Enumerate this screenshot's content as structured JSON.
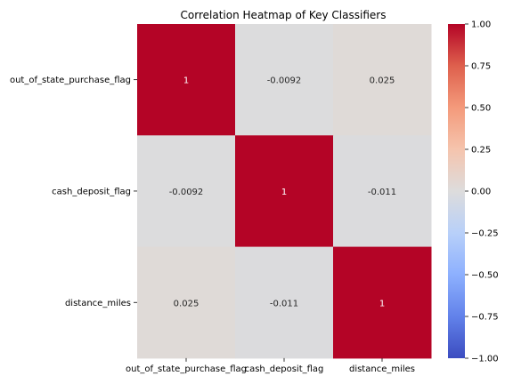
{
  "chart_data": {
    "type": "heatmap",
    "title": "Correlation Heatmap of Key Classifiers",
    "xlabel": "",
    "ylabel": "",
    "row_labels": [
      "out_of_state_purchase_flag",
      "cash_deposit_flag",
      "distance_miles"
    ],
    "col_labels": [
      "out_of_state_purchase_flag",
      "cash_deposit_flag",
      "distance_miles"
    ],
    "values": [
      [
        1,
        -0.0092,
        0.025
      ],
      [
        -0.0092,
        1,
        -0.011
      ],
      [
        0.025,
        -0.011,
        1
      ]
    ],
    "value_labels": [
      [
        "1",
        "-0.0092",
        "0.025"
      ],
      [
        "-0.0092",
        "1",
        "-0.011"
      ],
      [
        "0.025",
        "-0.011",
        "1"
      ]
    ],
    "colormap": "coolwarm",
    "vmin": -1.0,
    "vmax": 1.0,
    "colorbar_ticks": [
      1.0,
      0.75,
      0.5,
      0.25,
      0.0,
      -0.25,
      -0.5,
      -0.75,
      -1.0
    ],
    "colorbar_tick_labels": [
      "1.00",
      "0.75",
      "0.50",
      "0.25",
      "0.00",
      "−0.25",
      "−0.50",
      "−0.75",
      "−1.00"
    ],
    "colors": {
      "low": "#3b4cc0",
      "mid": "#dddcdc",
      "high": "#b40426"
    }
  }
}
